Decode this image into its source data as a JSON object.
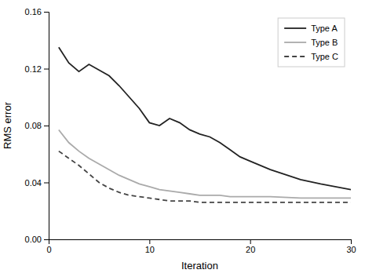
{
  "chart_data": {
    "type": "line",
    "xlabel": "Iteration",
    "ylabel": "RMS error",
    "x": [
      1,
      2,
      3,
      4,
      5,
      6,
      7,
      8,
      9,
      10,
      11,
      12,
      13,
      14,
      15,
      16,
      17,
      18,
      19,
      20,
      22,
      25,
      27,
      30
    ],
    "series": [
      {
        "name": "Type A",
        "color": "#222222",
        "line_style": "solid",
        "values": [
          0.135,
          0.124,
          0.118,
          0.123,
          0.119,
          0.115,
          0.108,
          0.1,
          0.092,
          0.082,
          0.08,
          0.085,
          0.082,
          0.077,
          0.074,
          0.072,
          0.068,
          0.063,
          0.058,
          0.055,
          0.049,
          0.042,
          0.039,
          0.035
        ]
      },
      {
        "name": "Type B",
        "color": "#aaaaaa",
        "line_style": "solid",
        "values": [
          0.077,
          0.068,
          0.062,
          0.057,
          0.053,
          0.049,
          0.045,
          0.042,
          0.039,
          0.037,
          0.035,
          0.034,
          0.033,
          0.032,
          0.031,
          0.031,
          0.031,
          0.03,
          0.03,
          0.03,
          0.03,
          0.029,
          0.029,
          0.029
        ]
      },
      {
        "name": "Type C",
        "color": "#444444",
        "line_style": "dashed",
        "values": [
          0.062,
          0.057,
          0.052,
          0.046,
          0.04,
          0.036,
          0.033,
          0.031,
          0.03,
          0.029,
          0.028,
          0.027,
          0.027,
          0.027,
          0.026,
          0.026,
          0.026,
          0.026,
          0.026,
          0.026,
          0.026,
          0.026,
          0.026,
          0.026
        ]
      }
    ],
    "xlim": [
      0,
      30
    ],
    "ylim": [
      0,
      0.16
    ],
    "xticks": [
      0,
      10,
      20,
      30
    ],
    "yticks": [
      {
        "value": 0,
        "label": "0.00"
      },
      0.04,
      0.08,
      0.12,
      0.16
    ],
    "grid": false,
    "legend": "upper right"
  }
}
